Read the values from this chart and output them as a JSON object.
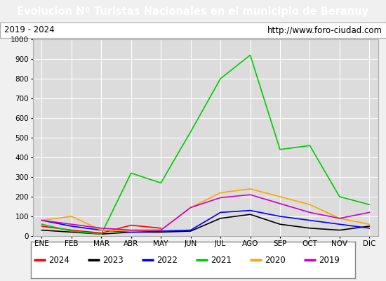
{
  "title": "Evolucion Nº Turistas Nacionales en el municipio de Beranuy",
  "subtitle_left": "2019 - 2024",
  "subtitle_right": "http://www.foro-ciudad.com",
  "title_color": "#ffffff",
  "title_bg": "#4472c4",
  "x_labels": [
    "ENE",
    "FEB",
    "MAR",
    "ABR",
    "MAY",
    "JUN",
    "JUL",
    "AGO",
    "SEP",
    "OCT",
    "NOV",
    "DIC"
  ],
  "ylim": [
    0,
    1000
  ],
  "yticks": [
    0,
    100,
    200,
    300,
    400,
    500,
    600,
    700,
    800,
    900,
    1000
  ],
  "series": {
    "2024": {
      "color": "#ff0000",
      "data": [
        50,
        30,
        15,
        55,
        40,
        null,
        null,
        null,
        null,
        null,
        null,
        null
      ]
    },
    "2023": {
      "color": "#000000",
      "data": [
        30,
        20,
        10,
        20,
        20,
        25,
        90,
        110,
        60,
        40,
        30,
        50
      ]
    },
    "2022": {
      "color": "#0000ff",
      "data": [
        80,
        50,
        30,
        20,
        25,
        30,
        120,
        130,
        100,
        80,
        60,
        40
      ]
    },
    "2021": {
      "color": "#00cc00",
      "data": [
        60,
        25,
        10,
        320,
        270,
        530,
        800,
        920,
        440,
        460,
        200,
        160
      ]
    },
    "2020": {
      "color": "#ffa500",
      "data": [
        80,
        100,
        30,
        25,
        30,
        145,
        220,
        240,
        200,
        160,
        90,
        60
      ]
    },
    "2019": {
      "color": "#cc00cc",
      "data": [
        80,
        60,
        40,
        30,
        30,
        145,
        195,
        210,
        165,
        120,
        90,
        120
      ]
    }
  },
  "legend_order": [
    "2024",
    "2023",
    "2022",
    "2021",
    "2020",
    "2019"
  ],
  "background_color": "#f0f0f0",
  "plot_bg": "#dcdcdc",
  "grid_color": "#ffffff"
}
